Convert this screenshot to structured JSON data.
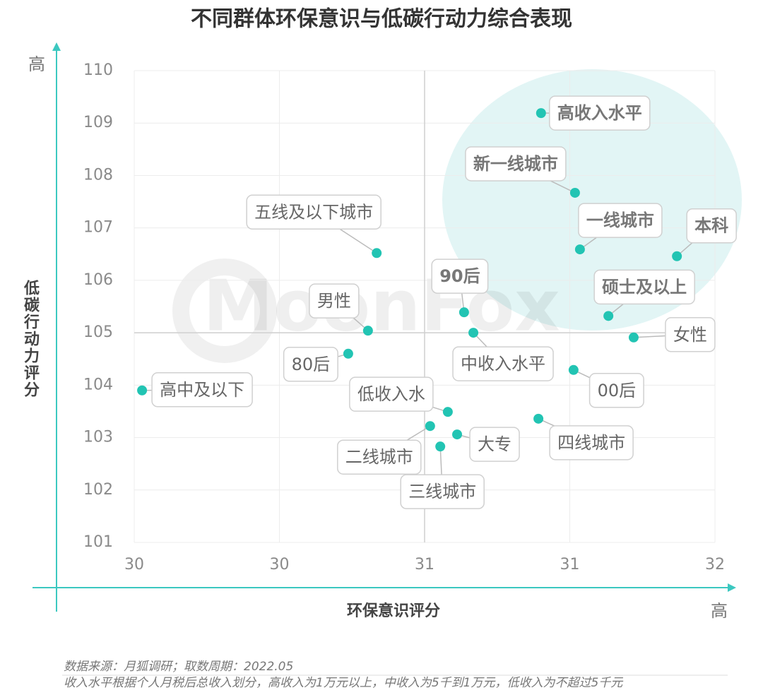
{
  "chart_data": {
    "type": "scatter",
    "title": "不同群体环保意识与低碳行动力综合表现",
    "x_label": "环保意识评分",
    "y_label": "低碳行动力评分",
    "x_high": "高",
    "y_high": "高",
    "watermark": "MoonFox",
    "notes": [
      "数据来源：月狐调研；取数周期：2022.05",
      "收入水平根据个人月税后总收入划分，高收入为1万元以上，中收入为5千到1万元，低收入为不超过5千元"
    ],
    "color": "#22c4b3",
    "xlim": [
      30,
      32
    ],
    "ylim": [
      101,
      110
    ],
    "xticks": [
      30,
      {
        "value": 30.5,
        "label": "30"
      },
      31,
      {
        "value": 31.5,
        "label": "31"
      },
      32
    ],
    "yticks": [
      101,
      102,
      103,
      104,
      105,
      106,
      107,
      108,
      109,
      110
    ],
    "xref": 31,
    "yref": 105,
    "grid": true,
    "labels": [
      "高收入水平",
      "新一线城市",
      "一线城市",
      "本科",
      "硕士及以上",
      "女性",
      "00后",
      "四线城市",
      "中收入水平",
      "90后",
      "五线及以下城市",
      "男性",
      "80后",
      "高中及以下",
      "低收入水",
      "二线城市",
      "大专",
      "三线城市"
    ],
    "x": [
      31.401,
      31.518,
      31.535,
      31.869,
      31.633,
      31.72,
      31.513,
      31.392,
      31.168,
      31.136,
      30.835,
      30.805,
      30.737,
      30.027,
      31.08,
      31.019,
      31.112,
      31.054
    ],
    "y": [
      109.19,
      107.67,
      106.59,
      106.46,
      105.32,
      104.91,
      104.29,
      103.36,
      105.0,
      105.39,
      106.52,
      105.04,
      104.6,
      103.9,
      103.49,
      103.22,
      103.06,
      102.83
    ]
  }
}
